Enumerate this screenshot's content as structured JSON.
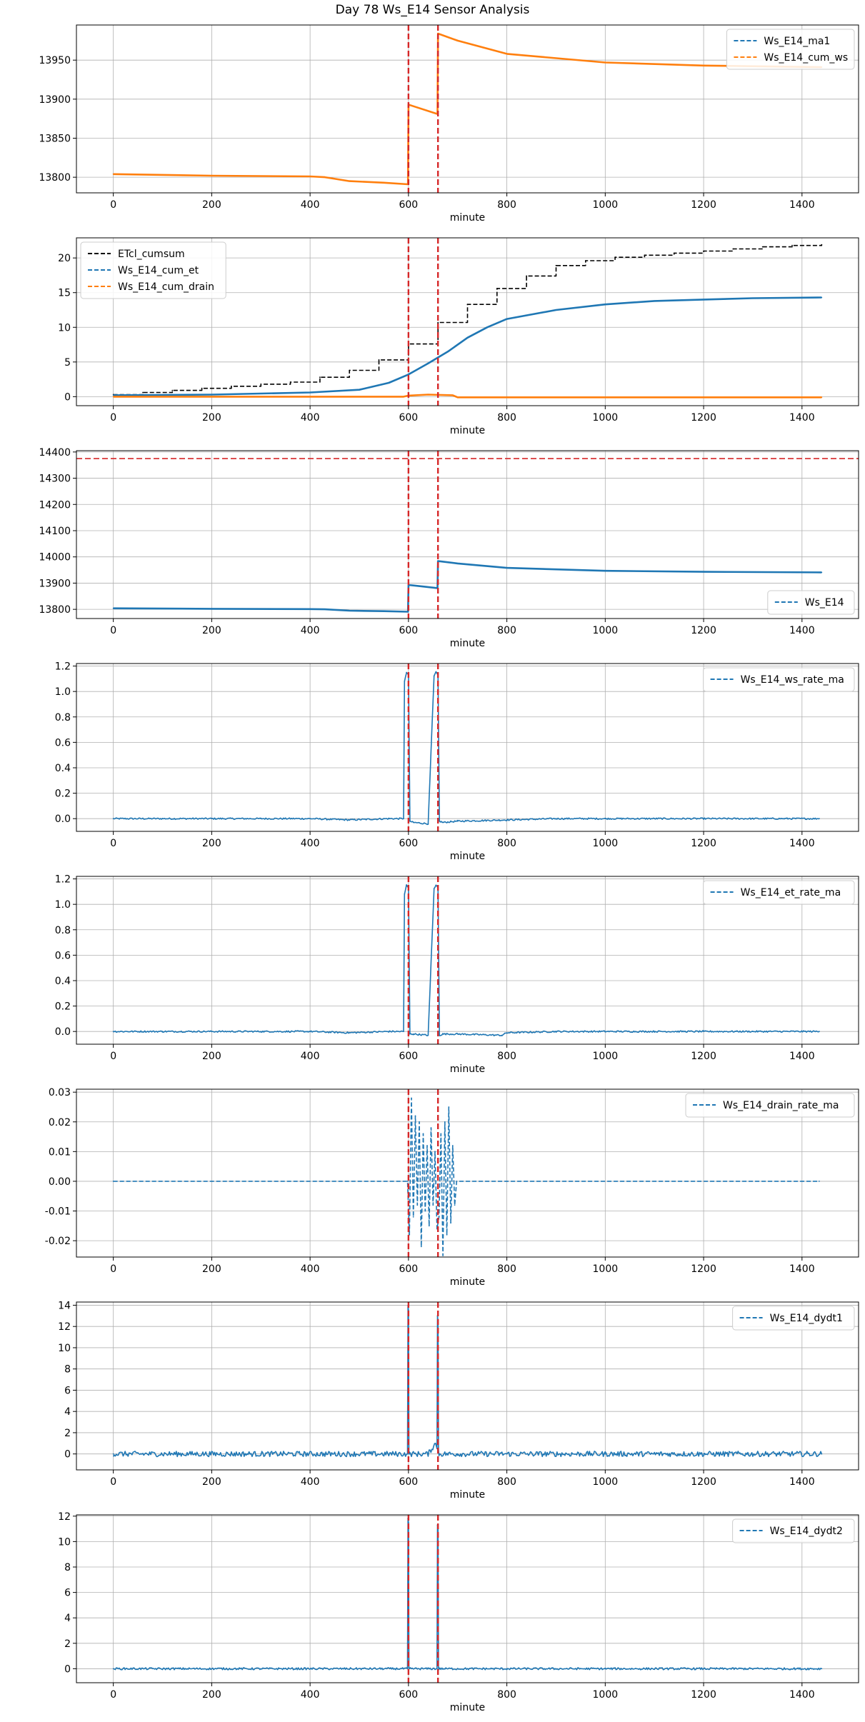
{
  "figure": {
    "title": "Day 78 Ws_E14 Sensor Analysis"
  },
  "colors": {
    "blue": "#1f77b4",
    "orange": "#ff7f0e",
    "black": "#000000",
    "red": "#d62728",
    "grid": "#b0b0b0"
  },
  "chart_data": [
    {
      "type": "line",
      "xlabel": "minute",
      "xlim": [
        -75,
        1515
      ],
      "ylim": [
        13780,
        13995
      ],
      "xticks": [
        0,
        200,
        400,
        600,
        800,
        1000,
        1200,
        1400
      ],
      "yticks": [
        13800,
        13850,
        13900,
        13950
      ],
      "yticklabels": [
        "13800",
        "13850",
        "13900",
        "13950"
      ],
      "grid": true,
      "legend": "upper right",
      "vlines": [
        600,
        660
      ],
      "series": [
        {
          "name": "Ws_E14_ma1",
          "color": "blue",
          "style": "dashed",
          "x": [
            0,
            200,
            400,
            430,
            480,
            550,
            599,
            600,
            610,
            659,
            660,
            700,
            800,
            1000,
            1200,
            1440
          ],
          "y": [
            13804,
            13802,
            13801,
            13800,
            13795,
            13793,
            13791,
            13893,
            13891,
            13881,
            13984,
            13975,
            13958,
            13947,
            13943,
            13941
          ]
        },
        {
          "name": "Ws_E14_cum_ws",
          "color": "orange",
          "style": "dashed",
          "thick": true,
          "x": [
            0,
            200,
            400,
            430,
            480,
            550,
            599,
            600,
            610,
            659,
            660,
            700,
            800,
            1000,
            1200,
            1440
          ],
          "y": [
            13804,
            13802,
            13801,
            13800,
            13795,
            13793,
            13791,
            13893,
            13891,
            13881,
            13984,
            13975,
            13958,
            13947,
            13943,
            13941
          ]
        }
      ]
    },
    {
      "type": "line",
      "xlabel": "minute",
      "xlim": [
        -75,
        1515
      ],
      "ylim": [
        -1.3,
        22.9
      ],
      "xticks": [
        0,
        200,
        400,
        600,
        800,
        1000,
        1200,
        1400
      ],
      "yticks": [
        0,
        5,
        10,
        15,
        20
      ],
      "yticklabels": [
        "0",
        "5",
        "10",
        "15",
        "20"
      ],
      "grid": true,
      "legend": "upper left",
      "vlines": [
        600,
        660
      ],
      "series": [
        {
          "name": "ETcl_cumsum",
          "color": "black",
          "style": "dashed",
          "step": true,
          "x": [
            0,
            60,
            120,
            180,
            240,
            300,
            360,
            420,
            480,
            540,
            600,
            660,
            720,
            780,
            840,
            900,
            960,
            1020,
            1080,
            1140,
            1200,
            1260,
            1320,
            1380,
            1440
          ],
          "y": [
            0.3,
            0.6,
            0.9,
            1.2,
            1.5,
            1.8,
            2.1,
            2.8,
            3.8,
            5.3,
            7.6,
            10.7,
            13.3,
            15.6,
            17.4,
            18.9,
            19.6,
            20.1,
            20.4,
            20.7,
            21.0,
            21.3,
            21.6,
            21.8,
            21.9
          ]
        },
        {
          "name": "Ws_E14_cum_et",
          "color": "blue",
          "style": "dashed",
          "thick": true,
          "x": [
            0,
            200,
            400,
            500,
            560,
            600,
            640,
            680,
            720,
            760,
            800,
            900,
            1000,
            1100,
            1200,
            1300,
            1440
          ],
          "y": [
            0.2,
            0.3,
            0.6,
            1.0,
            2.0,
            3.2,
            4.8,
            6.5,
            8.5,
            10.0,
            11.2,
            12.5,
            13.3,
            13.8,
            14.0,
            14.2,
            14.3
          ]
        },
        {
          "name": "Ws_E14_cum_drain",
          "color": "orange",
          "style": "dashed",
          "thick": true,
          "x": [
            0,
            590,
            600,
            640,
            690,
            700,
            1440
          ],
          "y": [
            0,
            0,
            0.15,
            0.3,
            0.2,
            -0.1,
            -0.1
          ]
        }
      ]
    },
    {
      "type": "line",
      "xlabel": "minute",
      "xlim": [
        -75,
        1515
      ],
      "ylim": [
        13765,
        14405
      ],
      "xticks": [
        0,
        200,
        400,
        600,
        800,
        1000,
        1200,
        1400
      ],
      "yticks": [
        13800,
        13900,
        14000,
        14100,
        14200,
        14300,
        14400
      ],
      "yticklabels": [
        "13800",
        "13900",
        "14000",
        "14100",
        "14200",
        "14300",
        "14400"
      ],
      "grid": true,
      "legend": "lower right",
      "vlines": [
        600,
        660
      ],
      "hline": 14375,
      "series": [
        {
          "name": "Ws_E14",
          "color": "blue",
          "style": "dashed",
          "thick": true,
          "x": [
            0,
            200,
            400,
            430,
            480,
            550,
            599,
            600,
            610,
            659,
            660,
            700,
            800,
            1000,
            1200,
            1440
          ],
          "y": [
            13804,
            13802,
            13801,
            13800,
            13795,
            13793,
            13791,
            13893,
            13891,
            13881,
            13984,
            13975,
            13958,
            13947,
            13943,
            13941
          ]
        }
      ]
    },
    {
      "type": "line",
      "xlabel": "minute",
      "xlim": [
        -75,
        1515
      ],
      "ylim": [
        -0.1,
        1.22
      ],
      "xticks": [
        0,
        200,
        400,
        600,
        800,
        1000,
        1200,
        1400
      ],
      "yticks": [
        0.0,
        0.2,
        0.4,
        0.6,
        0.8,
        1.0,
        1.2
      ],
      "yticklabels": [
        "0.0",
        "0.2",
        "0.4",
        "0.6",
        "0.8",
        "1.0",
        "1.2"
      ],
      "grid": true,
      "legend": "upper right",
      "vlines": [
        600,
        660
      ],
      "series": [
        {
          "name": "Ws_E14_ws_rate_ma",
          "color": "blue",
          "style": "dashed",
          "x": [
            0,
            100,
            200,
            300,
            400,
            480,
            560,
            590,
            592,
            596,
            600,
            603,
            610,
            640,
            652,
            656,
            660,
            663,
            670,
            700,
            800,
            900,
            1000,
            1100,
            1200,
            1300,
            1435
          ],
          "y": [
            0.0,
            0.0,
            0.0,
            0.0,
            0.0,
            -0.01,
            0.0,
            0.0,
            1.08,
            1.15,
            1.13,
            -0.02,
            -0.03,
            -0.04,
            1.12,
            1.15,
            1.13,
            -0.02,
            -0.03,
            -0.02,
            -0.01,
            0.0,
            0.0,
            0.0,
            0.0,
            0.0,
            0.0
          ],
          "noise": 0.006
        }
      ]
    },
    {
      "type": "line",
      "xlabel": "minute",
      "xlim": [
        -75,
        1515
      ],
      "ylim": [
        -0.1,
        1.22
      ],
      "xticks": [
        0,
        200,
        400,
        600,
        800,
        1000,
        1200,
        1400
      ],
      "yticks": [
        0.0,
        0.2,
        0.4,
        0.6,
        0.8,
        1.0,
        1.2
      ],
      "yticklabels": [
        "0.0",
        "0.2",
        "0.4",
        "0.6",
        "0.8",
        "1.0",
        "1.2"
      ],
      "grid": true,
      "legend": "upper right",
      "vlines": [
        600,
        660
      ],
      "series": [
        {
          "name": "Ws_E14_et_rate_ma",
          "color": "blue",
          "style": "dashed",
          "x": [
            0,
            100,
            200,
            300,
            400,
            480,
            560,
            590,
            592,
            596,
            600,
            603,
            610,
            640,
            652,
            656,
            660,
            663,
            670,
            700,
            790,
            800,
            900,
            1000,
            1100,
            1200,
            1300,
            1435
          ],
          "y": [
            0.0,
            0.0,
            0.0,
            0.0,
            0.0,
            -0.01,
            0.0,
            0.0,
            1.08,
            1.15,
            1.13,
            -0.02,
            -0.02,
            -0.03,
            1.12,
            1.15,
            1.13,
            -0.03,
            -0.02,
            -0.02,
            -0.03,
            -0.01,
            0.0,
            0.0,
            0.0,
            0.0,
            0.0,
            0.0
          ],
          "noise": 0.006
        }
      ]
    },
    {
      "type": "line",
      "xlabel": "minute",
      "xlim": [
        -75,
        1515
      ],
      "ylim": [
        -0.0255,
        0.031
      ],
      "xticks": [
        0,
        200,
        400,
        600,
        800,
        1000,
        1200,
        1400
      ],
      "yticks": [
        -0.02,
        -0.01,
        0.0,
        0.01,
        0.02,
        0.03
      ],
      "yticklabels": [
        "-0.02",
        "-0.01",
        "0.00",
        "0.01",
        "0.02",
        "0.03"
      ],
      "grid": true,
      "legend": "upper right",
      "vlines": [
        600,
        660
      ],
      "series": [
        {
          "name": "Ws_E14_drain_rate_ma",
          "color": "blue",
          "style": "dashed",
          "x": [
            0,
            598,
            602,
            606,
            610,
            614,
            618,
            622,
            626,
            630,
            634,
            638,
            642,
            646,
            650,
            654,
            658,
            662,
            666,
            670,
            674,
            678,
            682,
            686,
            690,
            694,
            698,
            1435
          ],
          "y": [
            0.0,
            0.0,
            -0.018,
            0.028,
            -0.012,
            0.022,
            -0.008,
            0.02,
            -0.022,
            0.016,
            -0.01,
            0.012,
            -0.015,
            0.018,
            -0.008,
            0.01,
            -0.016,
            -0.012,
            0.016,
            -0.025,
            0.02,
            -0.018,
            0.025,
            -0.014,
            0.012,
            -0.008,
            0.0,
            0.0
          ]
        }
      ]
    },
    {
      "type": "line",
      "xlabel": "minute",
      "xlim": [
        -75,
        1515
      ],
      "ylim": [
        -1.5,
        14.3
      ],
      "xticks": [
        0,
        200,
        400,
        600,
        800,
        1000,
        1200,
        1400
      ],
      "yticks": [
        0,
        2,
        4,
        6,
        8,
        10,
        12,
        14
      ],
      "yticklabels": [
        "0",
        "2",
        "4",
        "6",
        "8",
        "10",
        "12",
        "14"
      ],
      "grid": true,
      "legend": "upper right",
      "vlines": [
        600,
        660
      ],
      "series": [
        {
          "name": "Ws_E14_dydt1",
          "color": "blue",
          "style": "dashed",
          "x": [
            0,
            300,
            598,
            599,
            600,
            601,
            602,
            640,
            655,
            658,
            659,
            660,
            661,
            662,
            700,
            800,
            1000,
            1200,
            1440
          ],
          "y": [
            0.0,
            0.0,
            0.0,
            13.8,
            13.5,
            0.2,
            0.0,
            0.0,
            1.0,
            0.5,
            13.0,
            12.5,
            0.3,
            0.0,
            0.0,
            0.0,
            0.0,
            0.0,
            0.0
          ],
          "noise": 0.25
        }
      ]
    },
    {
      "type": "line",
      "xlabel": "minute",
      "xlim": [
        -75,
        1515
      ],
      "ylim": [
        -1.1,
        12.1
      ],
      "xticks": [
        0,
        200,
        400,
        600,
        800,
        1000,
        1200,
        1400
      ],
      "yticks": [
        0,
        2,
        4,
        6,
        8,
        10,
        12
      ],
      "yticklabels": [
        "0",
        "2",
        "4",
        "6",
        "8",
        "10",
        "12"
      ],
      "grid": true,
      "legend": "upper right",
      "vlines": [
        600,
        660
      ],
      "series": [
        {
          "name": "Ws_E14_dydt2",
          "color": "blue",
          "style": "dashed",
          "x": [
            0,
            300,
            598,
            599,
            600,
            601,
            602,
            658,
            659,
            660,
            661,
            662,
            700,
            800,
            1000,
            1200,
            1440
          ],
          "y": [
            0.0,
            0.0,
            0.0,
            11.8,
            11.5,
            0.1,
            0.0,
            0.0,
            11.3,
            11.0,
            0.1,
            0.0,
            0.0,
            0.0,
            0.0,
            0.0,
            0.0
          ],
          "noise": 0.08
        }
      ]
    }
  ]
}
